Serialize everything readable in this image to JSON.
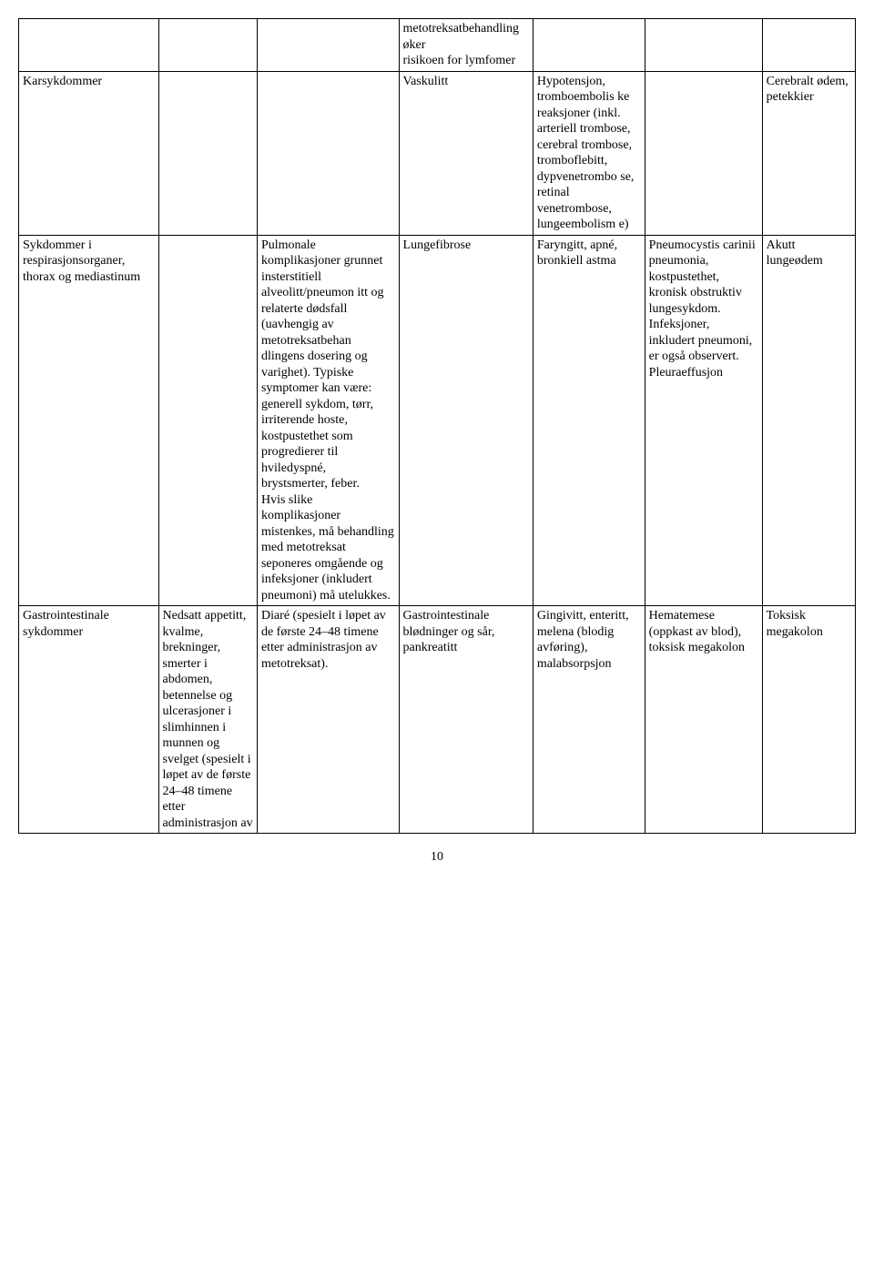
{
  "table": {
    "colWidths": [
      "150px",
      "106px",
      "152px",
      "144px",
      "120px",
      "126px",
      "100px"
    ],
    "rows": [
      {
        "c0": "",
        "c1": "",
        "c2": "",
        "c3": "metotreksatbehandling\nøker\nrisikoen for lymfomer",
        "c4": "",
        "c5": "",
        "c6": ""
      },
      {
        "c0": "Karsykdommer",
        "c1": "",
        "c2": "",
        "c3": "Vaskulitt",
        "c4": "Hypotensjon, tromboembolis ke reaksjoner (inkl. arteriell trombose, cerebral trombose, tromboflebitt, dypvenetrombo se, retinal venetrombose, lungeembolism e)",
        "c5": "",
        "c6": "Cerebralt ødem, petekkier"
      },
      {
        "c0": "Sykdommer i respirasjonsorganer, thorax og mediastinum",
        "c1": "",
        "c2": "Pulmonale komplikasjoner grunnet insterstitiell alveolitt/pneumon itt og relaterte dødsfall (uavhengig av metotreksatbehan dlingens dosering og varighet). Typiske symptomer kan være: generell sykdom, tørr, irriterende hoste, kostpustethet som progredierer til hviledyspné, brystsmerter, feber.\nHvis slike komplikasjoner mistenkes, må behandling med metotreksat seponeres omgående og infeksjoner (inkludert pneumoni) må utelukkes.",
        "c3": "Lungefibrose",
        "c4": "Faryngitt, apné, bronkiell astma",
        "c5": "Pneumocystis carinii pneumonia, kostpustethet, kronisk obstruktiv lungesykdom. Infeksjoner, inkludert pneumoni, er også observert. Pleuraeffusjon",
        "c6": "Akutt lungeødem"
      },
      {
        "c0": "Gastrointestinale sykdommer",
        "c1": "Nedsatt appetitt, kvalme, brekninger, smerter i abdomen, betennelse og ulcerasjoner i slimhinnen i\nmunnen og svelget (spesielt i løpet av de første\n24–48 timene etter administrasjon av",
        "c2": "Diaré (spesielt i løpet av de første 24–48 timene etter administrasjon av metotreksat).",
        "c3": "Gastrointestinale blødninger og sår, pankreatitt",
        "c4": "Gingivitt, enteritt, melena (blodig avføring), malabsorpsjon",
        "c5": "Hematemese (oppkast av blod), toksisk megakolon",
        "c6": "Toksisk megakolon"
      }
    ]
  },
  "pageNumber": "10"
}
